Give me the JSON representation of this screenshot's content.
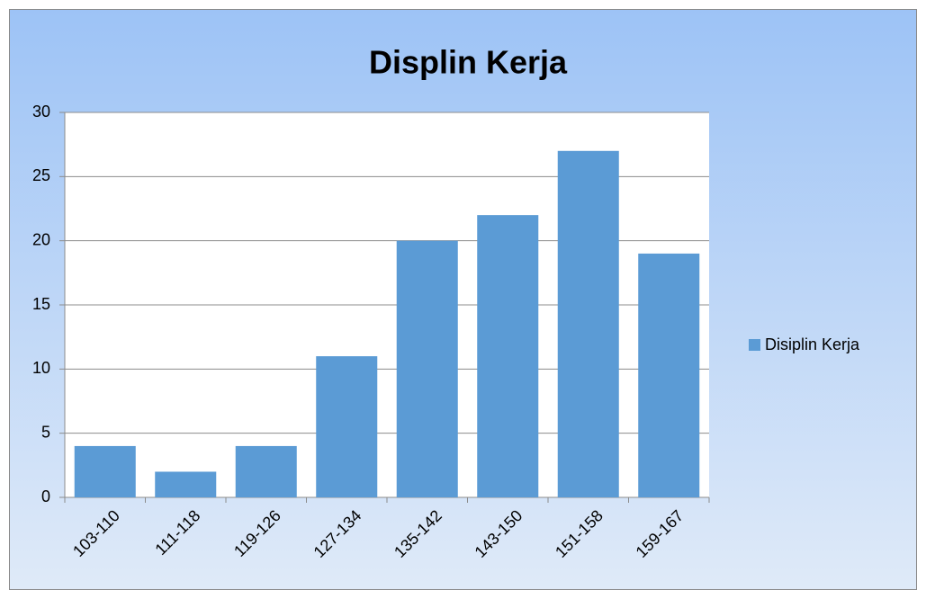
{
  "chart_data": {
    "type": "bar",
    "title": "Displin Kerja",
    "categories": [
      "103-110",
      "111-118",
      "119-126",
      "127-134",
      "135-142",
      "143-150",
      "151-158",
      "159-167"
    ],
    "series": [
      {
        "name": "Disiplin Kerja",
        "color": "#5b9bd5",
        "values": [
          4,
          2,
          4,
          11,
          20,
          22,
          27,
          19
        ]
      }
    ],
    "ylim": [
      0,
      30
    ],
    "yticks": [
      0,
      5,
      10,
      15,
      20,
      25,
      30
    ],
    "grid": true,
    "legend": "right"
  }
}
